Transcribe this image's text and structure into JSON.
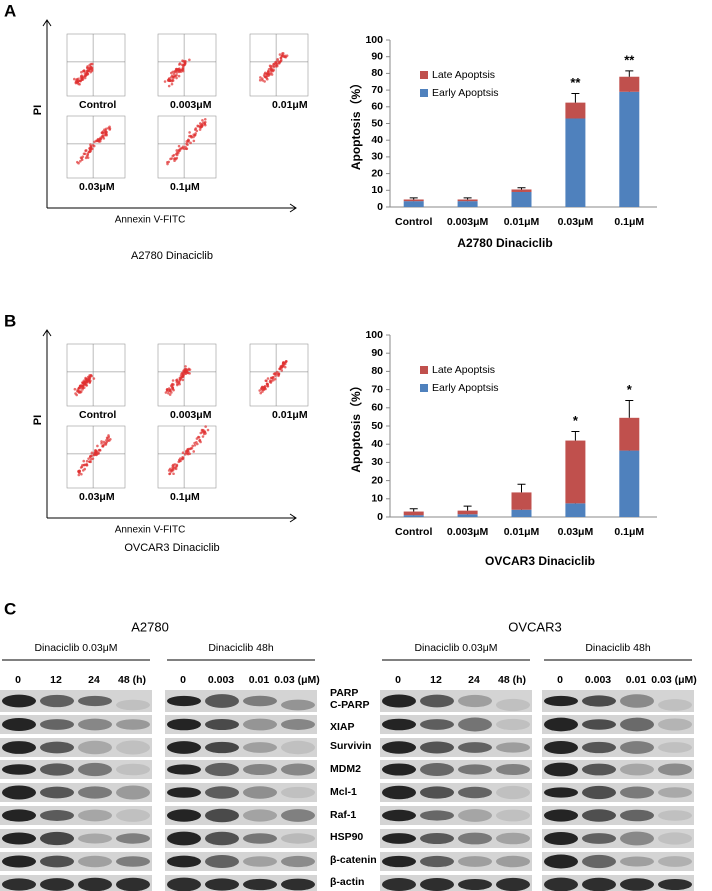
{
  "chart_data": [
    {
      "type": "bar",
      "stacked": true,
      "y_label": "Apoptosis（%）",
      "x_label": "A2780 Dinaciclib",
      "categories": [
        "Control",
        "0.003μM",
        "0.01μM",
        "0.03μM",
        "0.1μM"
      ],
      "series": [
        {
          "name": "Early Apoptsis",
          "color": "#4f81bd",
          "values": [
            3.5,
            3.5,
            9,
            53,
            69
          ],
          "errors": [
            0.5,
            0.5,
            0.5,
            1.5,
            1
          ]
        },
        {
          "name": "Late Apoptsis",
          "color": "#c0504d",
          "values": [
            1,
            1,
            1.5,
            9.5,
            9
          ],
          "errors": [
            1,
            1,
            1,
            5.5,
            3.5
          ]
        }
      ],
      "annotations": [
        {
          "category": "0.03μM",
          "text": "**"
        },
        {
          "category": "0.1μM",
          "text": "**"
        }
      ],
      "ylim": [
        0,
        100
      ],
      "yticks": [
        0,
        10,
        20,
        30,
        40,
        50,
        60,
        70,
        80,
        90,
        100
      ],
      "legend": "upper left"
    },
    {
      "type": "bar",
      "stacked": true,
      "y_label": "Apoptosis（%）",
      "x_label": "OVCAR3 Dinaciclib",
      "categories": [
        "Control",
        "0.003μM",
        "0.01μM",
        "0.03μM",
        "0.1μM"
      ],
      "series": [
        {
          "name": "Early Apoptsis",
          "color": "#4f81bd",
          "values": [
            1,
            1.5,
            4,
            7.5,
            36.5
          ],
          "errors": [
            0.5,
            0.5,
            3.5,
            4.5,
            5.5
          ]
        },
        {
          "name": "Late Apoptsis",
          "color": "#c0504d",
          "values": [
            2,
            2,
            9.5,
            34.5,
            18
          ],
          "errors": [
            1.5,
            2.5,
            4.5,
            5,
            9.5
          ]
        }
      ],
      "annotations": [
        {
          "category": "0.03μM",
          "text": "*"
        },
        {
          "category": "0.1μM",
          "text": "*"
        }
      ],
      "ylim": [
        0,
        100
      ],
      "yticks": [
        0,
        10,
        20,
        30,
        40,
        50,
        60,
        70,
        80,
        90,
        100
      ],
      "legend": "upper left"
    }
  ],
  "panels": [
    {
      "label": "A",
      "y_axis": "PI",
      "x_axis": "Annexin V-FITC",
      "conditions": [
        "Control",
        "0.003μM",
        "0.01μM",
        "0.03μM",
        "0.1μM"
      ],
      "caption": "A2780 Dinaciclib"
    },
    {
      "label": "B",
      "y_axis": "PI",
      "x_axis": "Annexin V-FITC",
      "conditions": [
        "Control",
        "0.003μM",
        "0.01μM",
        "0.03μM",
        "0.1μM"
      ],
      "caption": "OVCAR3 Dinaciclib"
    }
  ],
  "western": {
    "label": "C",
    "cell_lines": [
      "A2780",
      "OVCAR3"
    ],
    "groups": [
      {
        "title": "Dinaciclib 0.03μM",
        "lanes": [
          "0",
          "12",
          "24",
          "48 (h)"
        ]
      },
      {
        "title": "Dinaciclib 48h",
        "lanes": [
          "0",
          "0.003",
          "0.01",
          "0.03 (μM)"
        ]
      },
      {
        "title": "Dinaciclib 0.03μM",
        "lanes": [
          "0",
          "12",
          "24",
          "48 (h)"
        ]
      },
      {
        "title": "Dinaciclib 48h",
        "lanes": [
          "0",
          "0.003",
          "0.01",
          "0.03 (μM)"
        ]
      }
    ],
    "proteins": [
      "PARP",
      "C-PARP",
      "XIAP",
      "Survivin",
      "MDM2",
      "Mcl-1",
      "Raf-1",
      "HSP90",
      "β-catenin",
      "β-actin"
    ]
  }
}
